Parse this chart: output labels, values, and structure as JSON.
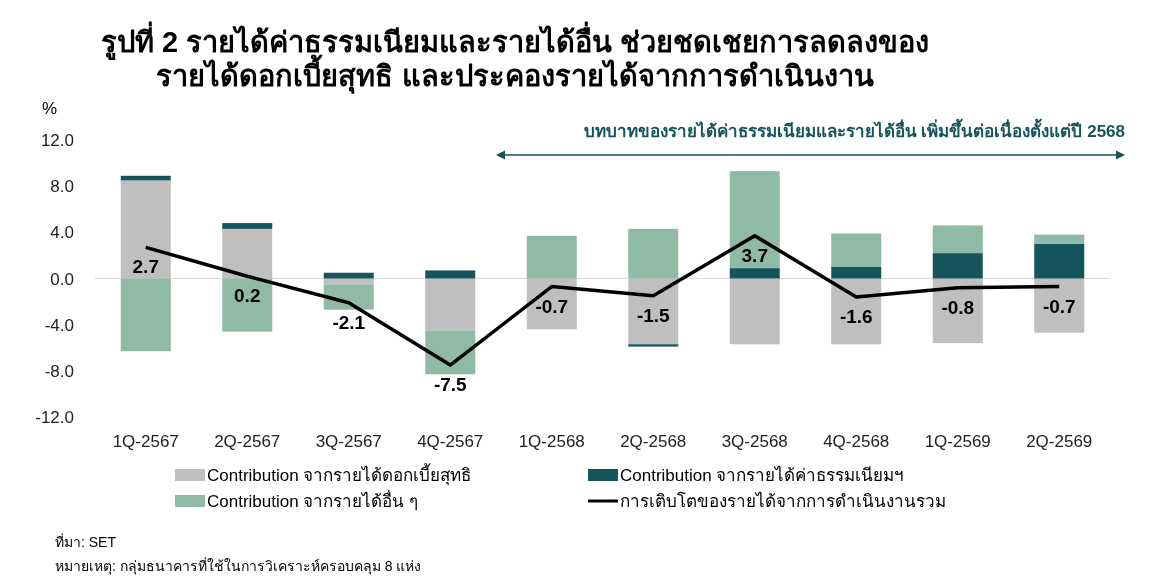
{
  "chart_data": {
    "type": "bar",
    "title": "รูปที่ 2  รายได้ค่าธรรมเนียมและรายได้อื่น ช่วยชดเชยการลดลงของ\nรายได้ดอกเบี้ยสุทธิ และประคองรายได้จากการดำเนินงาน",
    "ylabel": "%",
    "categories": [
      "1Q-2567",
      "2Q-2567",
      "3Q-2567",
      "4Q-2567",
      "1Q-2568",
      "2Q-2568",
      "3Q-2568",
      "4Q-2568",
      "1Q-2569",
      "2Q-2569"
    ],
    "stacked": true,
    "ylim": [
      -12,
      12
    ],
    "yticks": [
      {
        "value": 12,
        "label": "12.0"
      },
      {
        "value": 8,
        "label": "8.0"
      },
      {
        "value": 4,
        "label": "4.0"
      },
      {
        "value": 0,
        "label": "0.0"
      },
      {
        "value": -4,
        "label": "-4.0"
      },
      {
        "value": -8,
        "label": "-8.0"
      },
      {
        "value": -12,
        "label": "-12.0"
      }
    ],
    "ref_lines": [
      {
        "axis": "y",
        "value": 0,
        "color": "#d9d9d9"
      }
    ],
    "legend": "bottom",
    "series": [
      {
        "name": "Contribution จากรายได้ดอกเบี้ยสุทธิ",
        "color": "#bfbfbf",
        "values": [
          8.5,
          4.3,
          -0.5,
          -4.5,
          -4.4,
          -5.7,
          -5.7,
          -5.7,
          -5.6,
          -4.7
        ]
      },
      {
        "name": "Contribution จากรายได้ค่าธรรมเนียมฯ",
        "color": "#16545c",
        "values": [
          0.4,
          0.5,
          0.5,
          0.7,
          0,
          -0.2,
          0.9,
          1.0,
          2.2,
          3.0
        ]
      },
      {
        "name": "Contribution จากรายได้อื่น ๆ",
        "color": "#8fbaa5",
        "values": [
          -6.3,
          -4.6,
          -2.2,
          -3.8,
          3.7,
          4.3,
          8.4,
          2.9,
          2.4,
          0.8
        ]
      },
      {
        "name": "การเติบโตของรายได้จากการดำเนินงานรวม",
        "type": "line",
        "color": "#000000",
        "values": [
          2.7,
          0.2,
          -2.1,
          -7.5,
          -0.7,
          -1.5,
          3.7,
          -1.6,
          -0.8,
          -0.7
        ],
        "value_labels": [
          "2.7",
          "0.2",
          "-2.1",
          "-7.5",
          "-0.7",
          "-1.5",
          "3.7",
          "-1.6",
          "-0.8",
          "-0.7"
        ]
      }
    ],
    "annotations": [
      "บทบาทของรายได้ค่าธรรมเนียมและรายได้อื่น เพิ่มขึ้นต่อเนื่องตั้งแต่ปี 2568",
      "ที่มา: SET",
      "หมายเหตุ: กลุ่มธนาคารที่ใช้ในการวิเคราะห์ครอบคลุม 8 แห่ง"
    ]
  }
}
